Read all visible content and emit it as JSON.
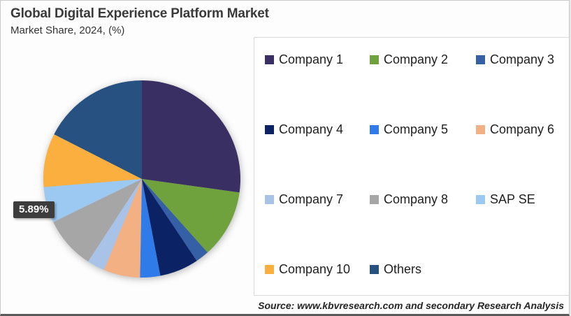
{
  "header": {
    "title": "Global Digital Experience Platform Market",
    "subtitle": "Market Share, 2024, (%)"
  },
  "callout": {
    "text": "5.89%"
  },
  "source": {
    "text": "Source: www.kbvresearch.com and secondary Research Analysis"
  },
  "chart_data": {
    "type": "pie",
    "title": "Global Digital Experience Platform Market",
    "subtitle": "Market Share, 2024, (%)",
    "unit": "%",
    "start_angle_deg": 0,
    "direction": "clockwise",
    "legend_position": "right",
    "labels": [
      "Company 1",
      "Company 2",
      "Company 3",
      "Company 4",
      "Company 5",
      "Company 6",
      "Company 7",
      "Company 8",
      "SAP SE",
      "Company 10",
      "Others"
    ],
    "values": [
      27.2,
      11.2,
      2.2,
      6.4,
      3.3,
      6.0,
      2.9,
      8.6,
      5.89,
      8.8,
      17.51
    ],
    "colors": [
      "#3a2f62",
      "#6fa23d",
      "#3560a5",
      "#0b2264",
      "#2e7be9",
      "#f3b183",
      "#a9c2e8",
      "#a6a6a6",
      "#9cc9f2",
      "#fbaf3f",
      "#265180"
    ],
    "annotations": [
      {
        "slice": "SAP SE",
        "text": "5.89%"
      }
    ]
  }
}
